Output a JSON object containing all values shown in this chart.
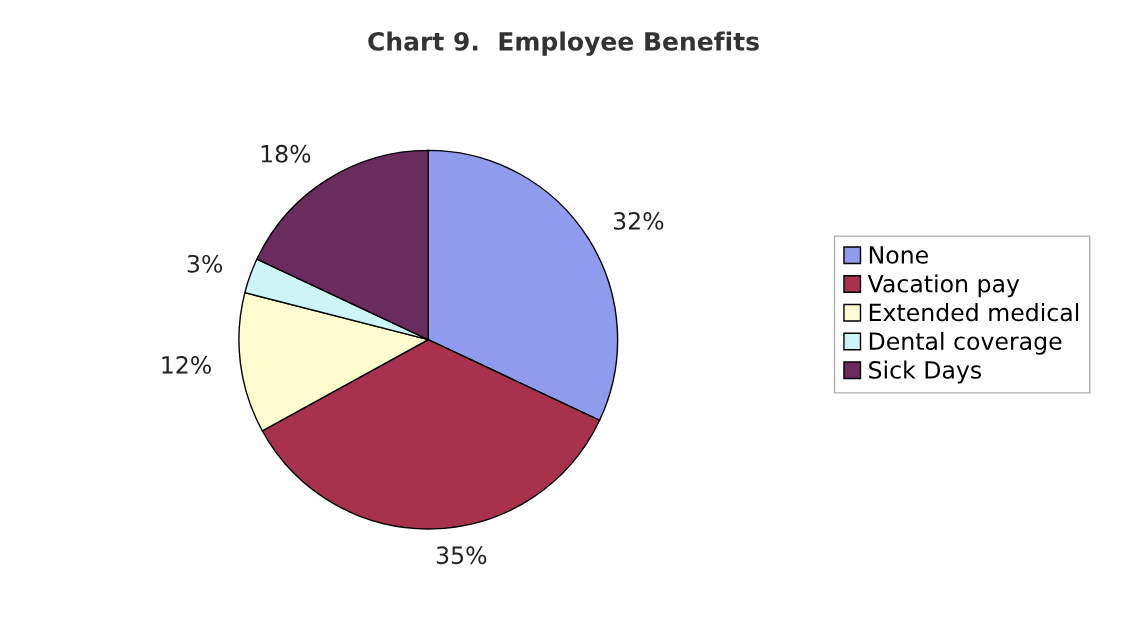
{
  "chart_data": {
    "type": "pie",
    "title": "Chart 9.  Employee Benefits",
    "categories": [
      "None",
      "Vacation pay",
      "Extended medical",
      "Dental coverage",
      "Sick Days"
    ],
    "values": [
      32,
      35,
      12,
      3,
      18
    ],
    "colors": [
      "#8f9cee",
      "#a8324e",
      "#fdfdcf",
      "#cdf5f8",
      "#6a2c5e"
    ],
    "value_labels": [
      "32%",
      "35%",
      "12%",
      "3%",
      "18%"
    ],
    "legend": "right"
  }
}
